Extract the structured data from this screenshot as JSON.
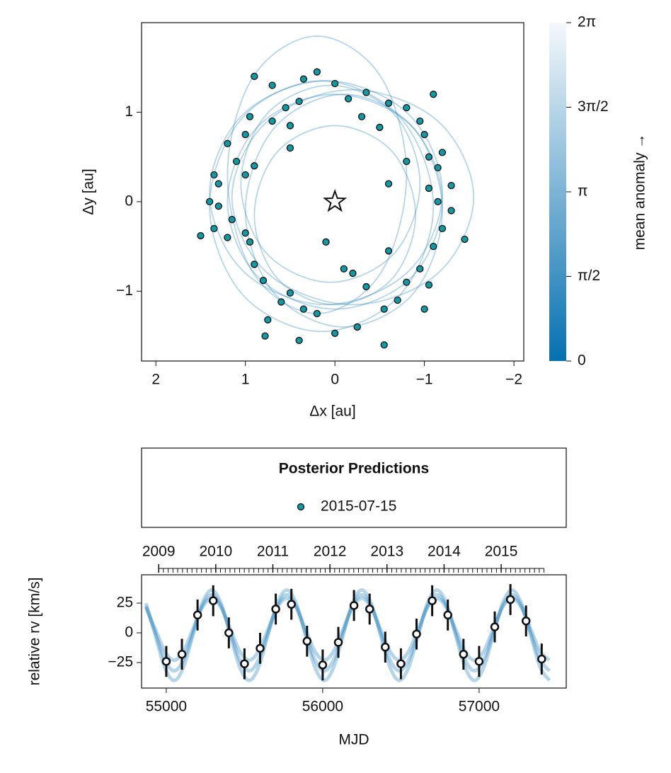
{
  "chart_data": [
    {
      "type": "scatter",
      "xlabel": "Δx [au]",
      "ylabel": "Δy [au]",
      "xlim": [
        2.16,
        -2.11
      ],
      "ylim": [
        -1.78,
        2.0
      ],
      "xticks": [
        2,
        1,
        0,
        {
          "value": -1,
          "label": "−1"
        },
        {
          "value": -2,
          "label": "−2"
        }
      ],
      "yticks": [
        {
          "value": -1,
          "label": "−1"
        },
        0,
        1
      ],
      "star": {
        "x": 0,
        "y": 0
      },
      "orbit_color": "#2b86c0",
      "orbits": [
        {
          "x": [
            1.2,
            0.85,
            0,
            -0.85,
            -1.2,
            -0.85,
            0,
            0.85
          ],
          "y": [
            0,
            0.85,
            1.2,
            0.85,
            0,
            -0.85,
            -1.2,
            -0.85
          ]
        },
        {
          "x": [
            1.4,
            1.02,
            0.1,
            -0.82,
            -1.2,
            -0.82,
            0.1,
            1.02
          ],
          "y": [
            0.1,
            0.98,
            1.35,
            0.98,
            0.1,
            -0.78,
            -1.15,
            -0.78
          ]
        },
        {
          "x": [
            1.0,
            0.68,
            -0.1,
            -0.88,
            -1.2,
            -0.88,
            -0.1,
            0.68
          ],
          "y": [
            -0.1,
            0.82,
            1.2,
            0.82,
            -0.1,
            -1.02,
            -1.4,
            -1.02
          ]
        },
        {
          "x": [
            1.05,
            0.76,
            0.05,
            -0.66,
            -0.95,
            -0.66,
            0.05,
            0.76
          ],
          "y": [
            0.2,
            0.98,
            1.3,
            0.98,
            0.2,
            -0.58,
            -0.9,
            -0.58
          ]
        },
        {
          "x": [
            1.15,
            0.75,
            -0.2,
            -1.15,
            -1.55,
            -1.15,
            -0.2,
            0.75
          ],
          "y": [
            0.05,
            0.9,
            1.25,
            0.9,
            0.05,
            -0.8,
            -1.15,
            -0.8
          ]
        },
        {
          "x": [
            1.2,
            0.91,
            0.2,
            -0.51,
            -0.8,
            -0.51,
            0.2,
            0.91
          ],
          "y": [
            0.3,
            1.4,
            1.85,
            1.4,
            0.3,
            -0.8,
            -1.25,
            -0.8
          ]
        },
        {
          "x": [
            0.9,
            0.64,
            0,
            -0.64,
            -0.9,
            -0.64,
            0,
            0.64
          ],
          "y": [
            -0.15,
            0.56,
            0.85,
            0.56,
            -0.15,
            -0.86,
            -1.15,
            -0.86
          ]
        },
        {
          "x": [
            1.4,
            1.03,
            0.15,
            -0.73,
            -1.1,
            -0.73,
            0.15,
            1.03
          ],
          "y": [
            -0.05,
            0.94,
            1.35,
            0.94,
            -0.05,
            -1.04,
            -1.45,
            -1.04
          ]
        }
      ],
      "legend_title": "Posterior Predictions",
      "series": [
        {
          "name": "2015-07-15",
          "color": "#0f9ba6",
          "x": [
            0.9,
            0.7,
            0.35,
            0.2,
            0.0,
            -0.15,
            -0.35,
            -0.6,
            -0.8,
            -1.1,
            -0.95,
            -1.0,
            -1.05,
            -1.2,
            -1.15,
            -0.8,
            -1.05,
            -1.3,
            -1.15,
            -1.45,
            -1.2,
            -1.3,
            -1.1,
            -0.95,
            -1.05,
            -0.8,
            -1.0,
            -0.7,
            -0.55,
            -0.6,
            -0.35,
            -0.25,
            -0.55,
            0.0,
            0.2,
            0.35,
            0.5,
            0.6,
            0.75,
            0.78,
            0.4,
            0.8,
            0.9,
            0.95,
            1.0,
            1.2,
            1.35,
            1.5,
            1.3,
            1.3,
            1.35,
            1.1,
            1.0,
            0.9,
            1.2,
            1.0,
            0.95,
            0.7,
            0.55,
            0.4,
            0.5,
            -0.3,
            -0.5,
            0.1,
            -0.1,
            -0.2,
            0.5,
            -0.6,
            1.15,
            1.4
          ],
          "y": [
            1.4,
            1.3,
            1.37,
            1.45,
            1.32,
            1.15,
            1.22,
            1.1,
            1.05,
            1.2,
            0.9,
            0.75,
            0.5,
            0.55,
            0.38,
            0.45,
            0.15,
            0.18,
            0.0,
            -0.42,
            -0.3,
            -0.1,
            -0.5,
            -0.75,
            -0.93,
            -0.9,
            -1.2,
            -1.1,
            -1.2,
            -0.55,
            -0.95,
            -1.4,
            -1.6,
            -1.47,
            -1.25,
            -1.2,
            -1.02,
            -1.12,
            -1.32,
            -1.5,
            -1.55,
            -0.88,
            -0.7,
            -0.45,
            -0.35,
            -0.4,
            -0.3,
            -0.38,
            -0.05,
            0.2,
            0.3,
            0.45,
            0.3,
            0.4,
            0.65,
            0.75,
            0.95,
            0.9,
            1.05,
            1.12,
            0.85,
            0.95,
            0.83,
            -0.45,
            -0.75,
            -0.8,
            0.6,
            0.2,
            -0.2,
            0.0
          ]
        }
      ],
      "colorbar": {
        "label": "mean anomaly →",
        "lim": [
          0,
          6.2832
        ],
        "colormap": [
          "#0570b0",
          "#f4f8fb"
        ],
        "ticks": [
          0,
          {
            "value": 1.5708,
            "label": "π/2"
          },
          {
            "value": 3.1416,
            "label": "π"
          },
          {
            "value": 4.7124,
            "label": "3π/2"
          },
          {
            "value": 6.2832,
            "label": "2π"
          }
        ]
      }
    },
    {
      "type": "errorbar",
      "xlabel": "MJD",
      "ylabel": "relative rv [km/s]",
      "xlim": [
        54842,
        57557
      ],
      "ylim": [
        -46.4,
        48.8
      ],
      "xticks": [
        55000,
        56000,
        57000
      ],
      "yticks": [
        {
          "value": -25,
          "label": "−25"
        },
        0,
        25
      ],
      "x2lim": [
        2008.7,
        2016.14
      ],
      "x2ticks": [
        2009,
        2010,
        2011,
        2012,
        2013,
        2014,
        2015
      ],
      "x2minorticks": [
        2009,
        2009.083,
        2009.167,
        2009.25,
        2009.333,
        2009.417,
        2009.5,
        2009.583,
        2009.667,
        2009.75,
        2009.833,
        2009.917,
        2010,
        2010.083,
        2010.167,
        2010.25,
        2010.333,
        2010.417,
        2010.5,
        2010.583,
        2010.667,
        2010.75,
        2010.833,
        2010.917,
        2011,
        2011.083,
        2011.167,
        2011.25,
        2011.333,
        2011.417,
        2011.5,
        2011.583,
        2011.667,
        2011.75,
        2011.833,
        2011.917,
        2012,
        2012.083,
        2012.167,
        2012.25,
        2012.333,
        2012.417,
        2012.5,
        2012.583,
        2012.667,
        2012.75,
        2012.833,
        2012.917,
        2013,
        2013.083,
        2013.167,
        2013.25,
        2013.333,
        2013.417,
        2013.5,
        2013.583,
        2013.667,
        2013.75,
        2013.833,
        2013.917,
        2014,
        2014.083,
        2014.167,
        2014.25,
        2014.333,
        2014.417,
        2014.5,
        2014.583,
        2014.667,
        2014.75,
        2014.833,
        2014.917,
        2015,
        2015.083,
        2015.167,
        2015.25,
        2015.333,
        2015.417,
        2015.5,
        2015.583,
        2015.667,
        2015.75
      ],
      "x": [
        55000,
        55100,
        55200,
        55300,
        55400,
        55500,
        55600,
        55700,
        55800,
        55900,
        56000,
        56100,
        56200,
        56300,
        56400,
        56500,
        56600,
        56700,
        56800,
        56900,
        57000,
        57100,
        57200,
        57300,
        57400
      ],
      "values": [
        -24,
        -18,
        15,
        27,
        0,
        -26,
        -13,
        20,
        24,
        -7,
        -27,
        -8,
        23,
        20,
        -12,
        -26,
        -1,
        27,
        15,
        -18,
        -24,
        5,
        28,
        10,
        -22
      ],
      "errors": [
        13,
        13,
        13,
        13,
        13,
        13,
        13,
        13,
        13,
        13,
        13,
        13,
        13,
        13,
        13,
        13,
        13,
        13,
        13,
        13,
        13,
        13,
        13,
        13,
        13
      ],
      "model_color": "#2b86c0",
      "model_x": [
        54870,
        54930,
        54990,
        55050,
        55110,
        55170,
        55230,
        55290,
        55350,
        55410,
        55470,
        55530,
        55590,
        55650,
        55710,
        55770,
        55830,
        55890,
        55950,
        56010,
        56070,
        56130,
        56190,
        56250,
        56310,
        56370,
        56430,
        56490,
        56550,
        56610,
        56670,
        56730,
        56790,
        56850,
        56910,
        56970,
        57030,
        57090,
        57150,
        57210,
        57270,
        57330,
        57390,
        57450
      ],
      "models": [
        {
          "values": [
            22.6,
            0,
            -22.6,
            -32,
            -22.6,
            0,
            22.6,
            32,
            22.6,
            0,
            -22.6,
            -32,
            -22.6,
            0,
            22.6,
            32,
            22.6,
            0,
            -22.6,
            -32,
            -22.6,
            0,
            22.6,
            32,
            22.6,
            0,
            -22.6,
            -32,
            -22.6,
            0,
            22.6,
            32,
            22.6,
            0,
            -22.6,
            -32,
            -22.6,
            0,
            22.6,
            32,
            22.6,
            0,
            -22.6,
            -32
          ]
        },
        {
          "values": [
            24.9,
            -2,
            -28.9,
            -40,
            -28.9,
            -2,
            24.9,
            36,
            24.9,
            -2,
            -28.9,
            -40,
            -28.9,
            -2,
            24.9,
            36,
            24.9,
            -2,
            -28.9,
            -40,
            -28.9,
            -2,
            24.9,
            36,
            24.9,
            -2,
            -28.9,
            -40,
            -28.9,
            -2,
            24.9,
            36,
            24.9,
            -2,
            -28.9,
            -40,
            -28.9,
            -2,
            24.9,
            36,
            24.9,
            -2,
            -28.9,
            -40
          ]
        },
        {
          "values": [
            21.4,
            3,
            -15.4,
            -23,
            -15.4,
            3,
            21.4,
            29,
            21.4,
            3,
            -15.4,
            -23,
            -15.4,
            3,
            21.4,
            29,
            21.4,
            3,
            -15.4,
            -23,
            -15.4,
            3,
            21.4,
            29,
            21.4,
            3,
            -15.4,
            -23,
            -15.4,
            3,
            21.4,
            29,
            21.4,
            3,
            -15.4,
            -23,
            -15.4,
            3,
            21.4,
            29,
            21.4,
            3,
            -15.4,
            -23
          ]
        }
      ]
    }
  ]
}
